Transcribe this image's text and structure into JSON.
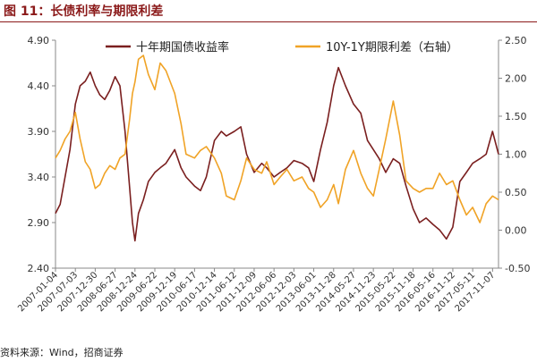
{
  "figure_title": "图 11：长债利率与期限利差",
  "source": "资料来源：Wind，招商证券",
  "colors": {
    "title": "#8b1a1a",
    "series_10y": "#7a1f1f",
    "series_spread": "#f0a326"
  },
  "chart_data": {
    "type": "line",
    "legend_position": "top",
    "grid": false,
    "x_tick_labels": [
      "2007-01-04",
      "2007-07-03",
      "2007-12-30",
      "2008-06-27",
      "2008-12-24",
      "2009-06-22",
      "2009-12-19",
      "2010-06-17",
      "2010-12-14",
      "2011-06-12",
      "2011-12-09",
      "2012-06-06",
      "2012-12-03",
      "2013-06-01",
      "2013-11-28",
      "2014-05-27",
      "2014-11-23",
      "2015-05-22",
      "2015-11-18",
      "2016-05-16",
      "2016-11-12",
      "2017-05-11",
      "2017-11-07"
    ],
    "y_left": {
      "ylim": [
        2.4,
        4.9
      ],
      "ticks": [
        "2.40",
        "2.90",
        "3.40",
        "3.90",
        "4.40",
        "4.90"
      ]
    },
    "y_right": {
      "ylim": [
        -0.5,
        2.5
      ],
      "ticks": [
        "-0.50",
        "0.00",
        "0.50",
        "1.00",
        "1.50",
        "2.00",
        "2.50"
      ]
    },
    "series": [
      {
        "name": "十年期国债收益率",
        "axis": "left",
        "x": [
          "2007-01-04",
          "2007-02-15",
          "2007-04-01",
          "2007-05-15",
          "2007-07-03",
          "2007-08-15",
          "2007-10-01",
          "2007-11-15",
          "2007-12-30",
          "2008-02-10",
          "2008-03-25",
          "2008-05-10",
          "2008-06-27",
          "2008-08-10",
          "2008-09-25",
          "2008-11-05",
          "2008-12-01",
          "2008-12-24",
          "2009-01-25",
          "2009-03-10",
          "2009-04-25",
          "2009-06-22",
          "2009-08-10",
          "2009-10-01",
          "2009-12-19",
          "2010-02-15",
          "2010-04-01",
          "2010-06-17",
          "2010-08-10",
          "2010-10-01",
          "2010-12-14",
          "2011-02-15",
          "2011-04-01",
          "2011-06-12",
          "2011-08-10",
          "2011-10-01",
          "2011-12-09",
          "2012-02-15",
          "2012-04-01",
          "2012-06-06",
          "2012-08-01",
          "2012-10-01",
          "2012-12-03",
          "2013-02-15",
          "2013-04-15",
          "2013-06-01",
          "2013-08-01",
          "2013-10-01",
          "2013-11-28",
          "2014-01-10",
          "2014-03-15",
          "2014-05-27",
          "2014-08-01",
          "2014-10-01",
          "2014-11-23",
          "2015-01-15",
          "2015-03-15",
          "2015-05-22",
          "2015-07-20",
          "2015-09-15",
          "2015-11-18",
          "2016-01-15",
          "2016-03-15",
          "2016-05-16",
          "2016-07-15",
          "2016-09-15",
          "2016-11-12",
          "2017-01-15",
          "2017-03-15",
          "2017-05-11",
          "2017-07-15",
          "2017-09-10",
          "2017-11-07",
          "2017-12-31"
        ],
        "y": [
          3.0,
          3.1,
          3.4,
          3.7,
          4.2,
          4.4,
          4.45,
          4.55,
          4.4,
          4.3,
          4.25,
          4.35,
          4.5,
          4.4,
          3.9,
          3.3,
          2.9,
          2.7,
          3.0,
          3.15,
          3.35,
          3.45,
          3.5,
          3.55,
          3.7,
          3.5,
          3.4,
          3.3,
          3.25,
          3.4,
          3.8,
          3.9,
          3.85,
          3.9,
          3.95,
          3.65,
          3.45,
          3.55,
          3.5,
          3.4,
          3.45,
          3.5,
          3.58,
          3.55,
          3.5,
          3.35,
          3.7,
          4.0,
          4.4,
          4.6,
          4.4,
          4.2,
          4.1,
          3.8,
          3.7,
          3.6,
          3.45,
          3.6,
          3.55,
          3.3,
          3.05,
          2.9,
          2.95,
          2.88,
          2.82,
          2.72,
          2.85,
          3.35,
          3.45,
          3.55,
          3.6,
          3.65,
          3.9,
          3.65
        ]
      },
      {
        "name": "10Y-1Y期限利差（右轴）",
        "axis": "right",
        "x": [
          "2007-01-04",
          "2007-02-15",
          "2007-04-01",
          "2007-05-15",
          "2007-07-03",
          "2007-08-15",
          "2007-10-01",
          "2007-11-15",
          "2007-12-30",
          "2008-02-10",
          "2008-03-25",
          "2008-05-10",
          "2008-06-27",
          "2008-08-10",
          "2008-09-25",
          "2008-11-05",
          "2008-12-01",
          "2008-12-24",
          "2009-01-25",
          "2009-03-10",
          "2009-04-25",
          "2009-06-22",
          "2009-08-10",
          "2009-10-01",
          "2009-12-19",
          "2010-02-15",
          "2010-04-01",
          "2010-06-17",
          "2010-08-10",
          "2010-10-01",
          "2010-12-14",
          "2011-02-15",
          "2011-04-01",
          "2011-06-12",
          "2011-08-10",
          "2011-10-01",
          "2011-12-09",
          "2012-02-15",
          "2012-04-01",
          "2012-06-06",
          "2012-08-01",
          "2012-10-01",
          "2012-12-03",
          "2013-02-15",
          "2013-04-15",
          "2013-06-01",
          "2013-08-01",
          "2013-10-01",
          "2013-11-28",
          "2014-01-10",
          "2014-03-15",
          "2014-05-27",
          "2014-08-01",
          "2014-10-01",
          "2014-11-23",
          "2015-01-15",
          "2015-03-15",
          "2015-05-22",
          "2015-07-20",
          "2015-09-15",
          "2015-11-18",
          "2016-01-15",
          "2016-03-15",
          "2016-05-16",
          "2016-07-15",
          "2016-09-15",
          "2016-11-12",
          "2017-01-15",
          "2017-03-15",
          "2017-05-11",
          "2017-07-15",
          "2017-09-10",
          "2017-11-07",
          "2017-12-31"
        ],
        "y": [
          0.95,
          1.05,
          1.2,
          1.3,
          1.55,
          1.2,
          0.9,
          0.8,
          0.55,
          0.6,
          0.75,
          0.85,
          0.8,
          0.95,
          1.0,
          1.45,
          1.8,
          1.95,
          2.25,
          2.3,
          2.05,
          1.85,
          2.2,
          2.1,
          1.8,
          1.4,
          1.0,
          0.95,
          1.05,
          1.1,
          0.95,
          0.75,
          0.45,
          0.4,
          0.65,
          0.95,
          0.8,
          0.75,
          0.9,
          0.6,
          0.7,
          0.8,
          0.65,
          0.7,
          0.55,
          0.5,
          0.3,
          0.4,
          0.6,
          0.35,
          0.8,
          1.05,
          0.75,
          0.55,
          0.45,
          0.8,
          1.2,
          1.7,
          1.25,
          0.65,
          0.55,
          0.5,
          0.55,
          0.55,
          0.75,
          0.6,
          0.65,
          0.4,
          0.2,
          0.3,
          0.1,
          0.35,
          0.45,
          0.4
        ]
      }
    ]
  }
}
